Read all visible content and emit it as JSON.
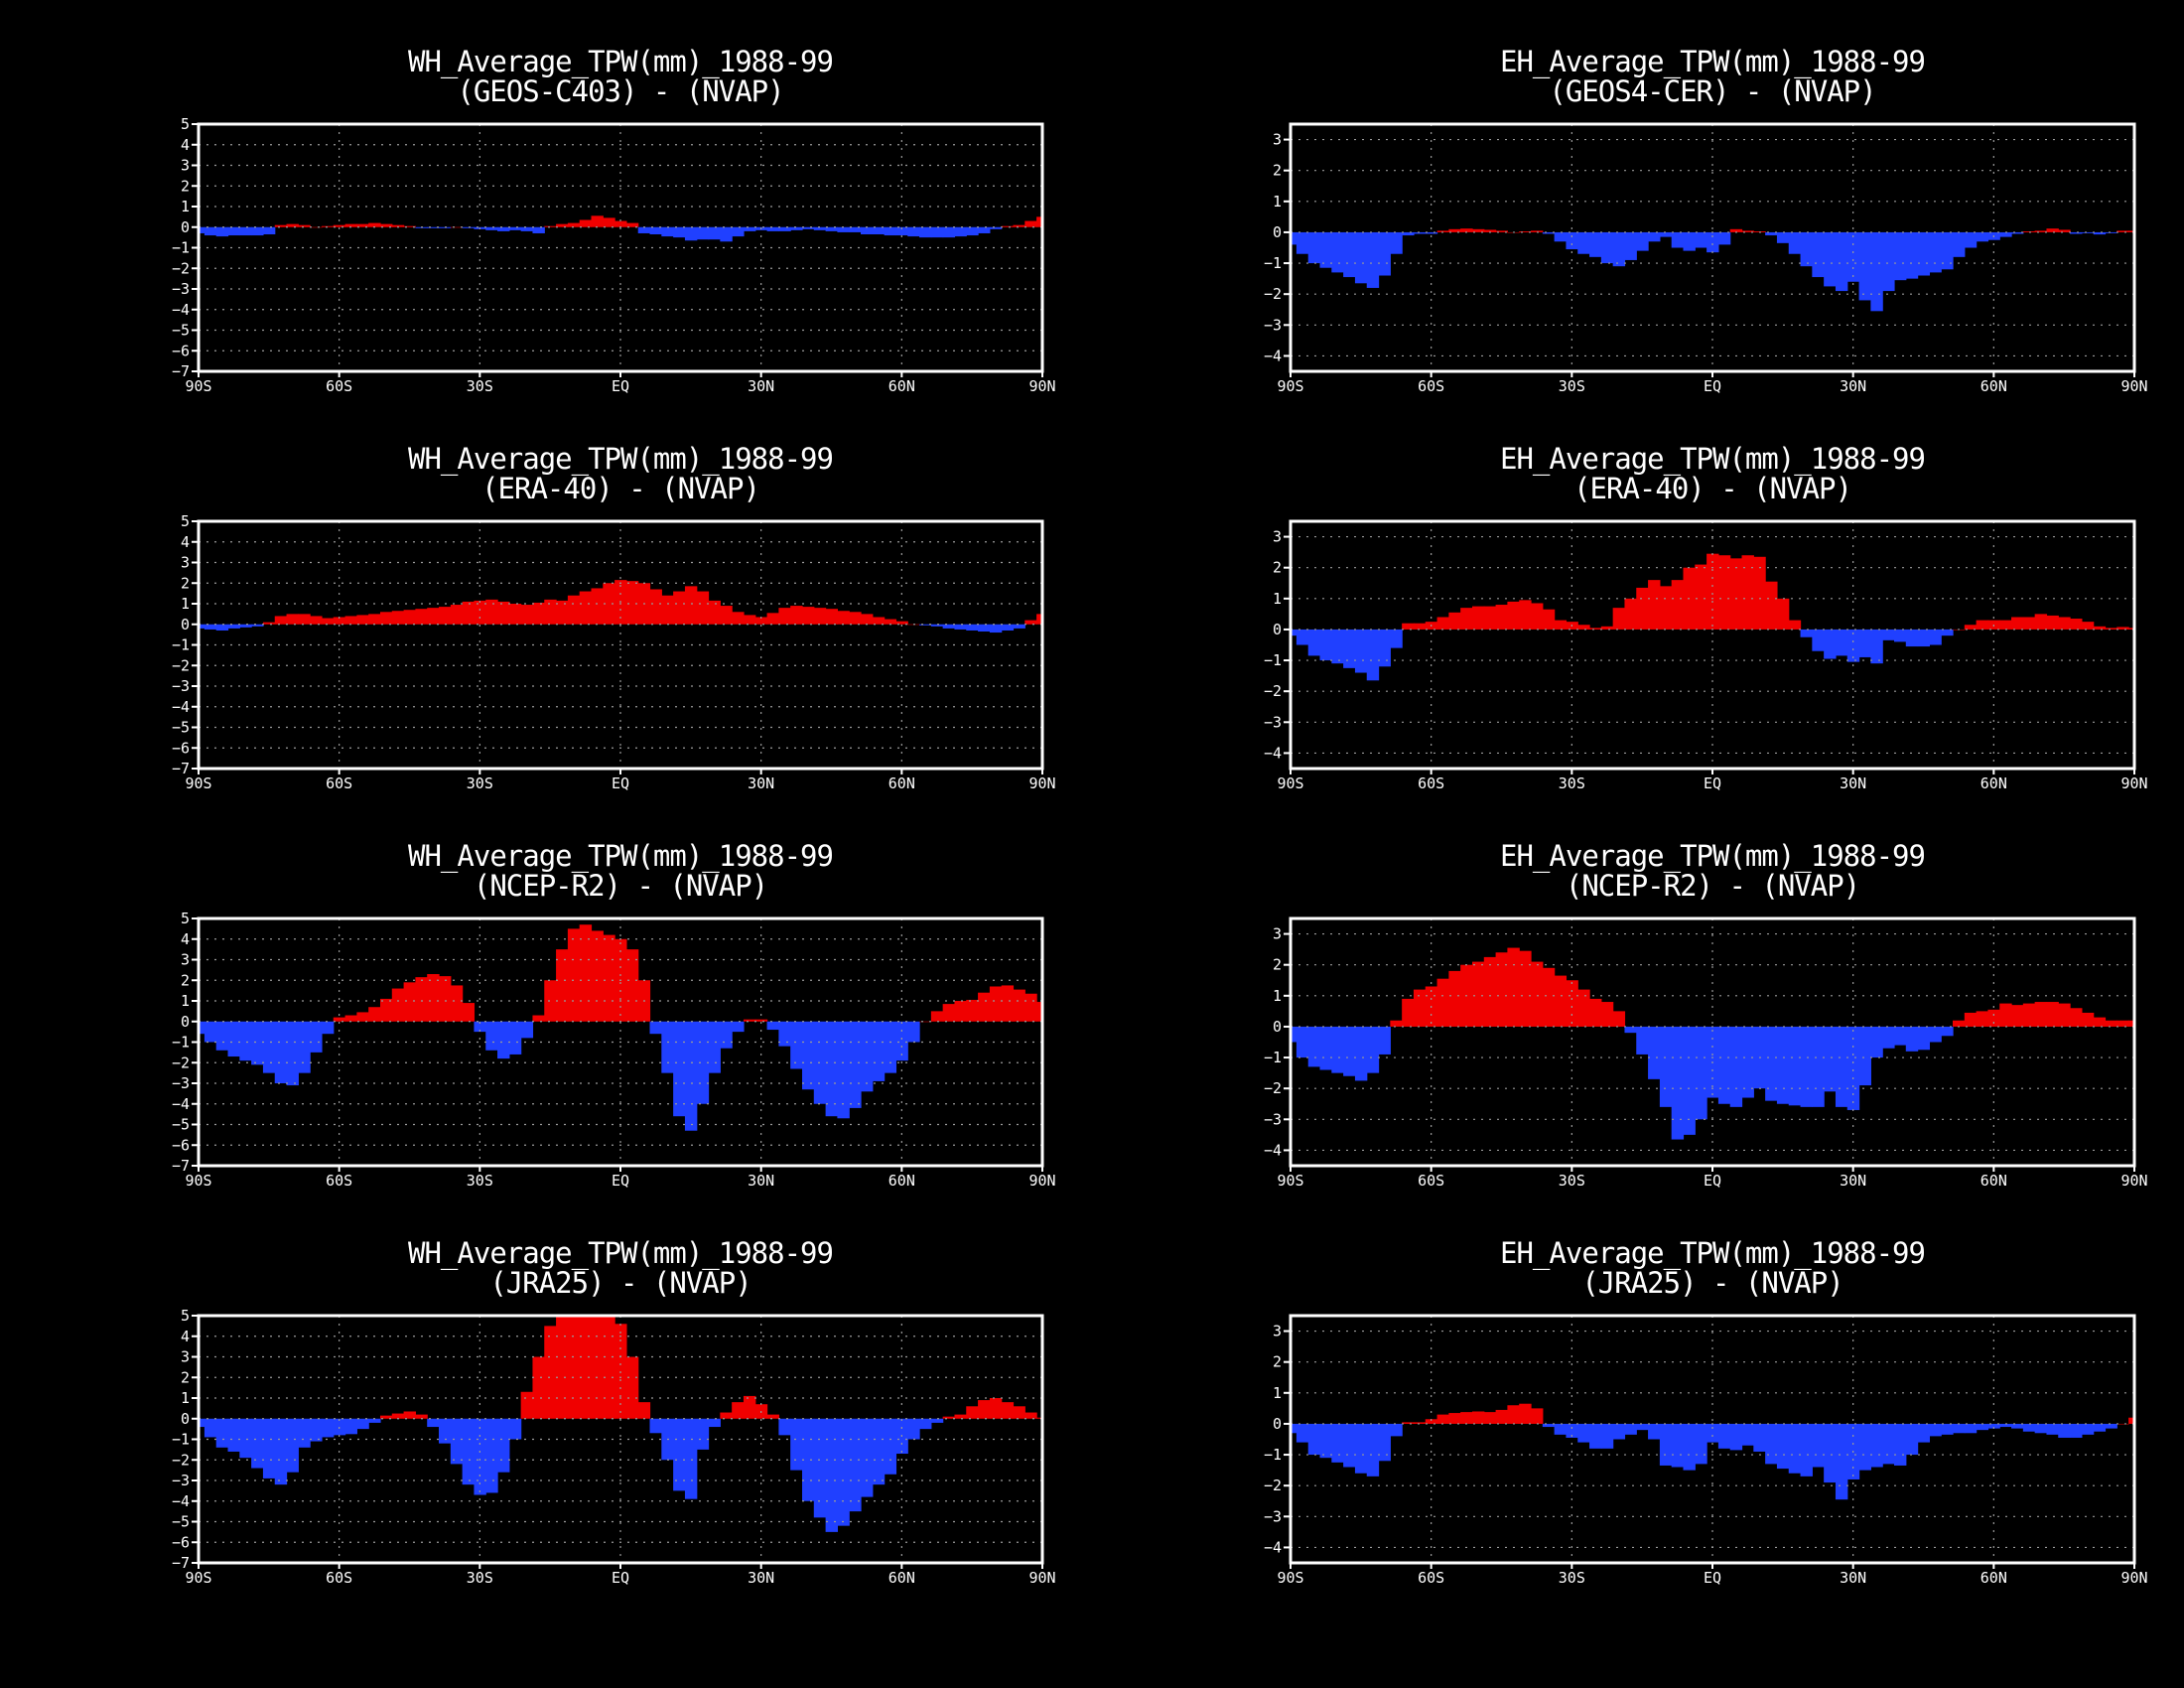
{
  "colors": {
    "positive": "#F00000",
    "negative": "#2040FF",
    "frame": "#FFFFFF",
    "grid": "#9A9A9A",
    "background": "#000000"
  },
  "chart_data": [
    {
      "type": "area",
      "title": "WH_Average_TPW(mm)_1988-99",
      "subtitle": "(GEOS-C403) - (NVAP)",
      "xlabel": "",
      "ylabel": "",
      "xlim": [
        -90,
        90
      ],
      "ylim": [
        -7,
        5
      ],
      "xticks": [
        "90S",
        "60S",
        "30S",
        "EQ",
        "30N",
        "60N",
        "90N"
      ],
      "yticks": [
        "5",
        "4",
        "3",
        "2",
        "1",
        "0",
        "-1",
        "-2",
        "-3",
        "-4",
        "-5",
        "-6",
        "-7"
      ],
      "grid": true,
      "x_step_deg": 2.5,
      "values": [
        -0.3,
        -0.4,
        -0.45,
        -0.4,
        -0.4,
        -0.4,
        -0.35,
        0.1,
        0.15,
        0.1,
        0,
        0.05,
        0.1,
        0.15,
        0.15,
        0.2,
        0.15,
        0.1,
        0.05,
        -0.05,
        -0.05,
        -0.05,
        0,
        -0.05,
        -0.1,
        -0.15,
        -0.2,
        -0.15,
        -0.2,
        -0.3,
        0.05,
        0.15,
        0.2,
        0.35,
        0.55,
        0.45,
        0.3,
        0.2,
        -0.3,
        -0.35,
        -0.45,
        -0.5,
        -0.65,
        -0.6,
        -0.6,
        -0.7,
        -0.45,
        -0.2,
        -0.15,
        -0.2,
        -0.2,
        -0.15,
        -0.1,
        -0.15,
        -0.2,
        -0.25,
        -0.25,
        -0.35,
        -0.35,
        -0.4,
        -0.4,
        -0.45,
        -0.5,
        -0.5,
        -0.5,
        -0.45,
        -0.4,
        -0.3,
        -0.1,
        0.05,
        0.1,
        0.3,
        0.5
      ]
    },
    {
      "type": "area",
      "title": "EH_Average_TPW(mm)_1988-99",
      "subtitle": "(GEOS4-CER) - (NVAP)",
      "xlabel": "",
      "ylabel": "",
      "xlim": [
        -90,
        90
      ],
      "ylim": [
        -4.5,
        3.5
      ],
      "xticks": [
        "90S",
        "60S",
        "30S",
        "EQ",
        "30N",
        "60N",
        "90N"
      ],
      "yticks": [
        "3",
        "2",
        "1",
        "0",
        "-1",
        "-2",
        "-3",
        "-4"
      ],
      "grid": true,
      "x_step_deg": 2.5,
      "values": [
        -0.4,
        -0.7,
        -1.0,
        -1.15,
        -1.3,
        -1.45,
        -1.65,
        -1.8,
        -1.4,
        -0.7,
        -0.1,
        -0.05,
        -0.05,
        0.05,
        0.1,
        0.12,
        0.1,
        0.08,
        0.05,
        0.0,
        0.03,
        0.05,
        -0.05,
        -0.3,
        -0.55,
        -0.7,
        -0.8,
        -1.0,
        -1.1,
        -0.9,
        -0.6,
        -0.3,
        -0.15,
        -0.5,
        -0.6,
        -0.5,
        -0.65,
        -0.4,
        0.1,
        0.05,
        0.03,
        -0.1,
        -0.35,
        -0.7,
        -1.1,
        -1.45,
        -1.75,
        -1.9,
        -1.6,
        -2.2,
        -2.55,
        -1.9,
        -1.55,
        -1.5,
        -1.4,
        -1.3,
        -1.2,
        -0.8,
        -0.5,
        -0.3,
        -0.25,
        -0.15,
        -0.05,
        0.03,
        0.05,
        0.12,
        0.08,
        -0.05,
        -0.03,
        -0.07,
        -0.03,
        0.05,
        0.05,
        0.15,
        0.4,
        0.55
      ]
    },
    {
      "type": "area",
      "title": "WH_Average_TPW(mm)_1988-99",
      "subtitle": "(ERA-40) - (NVAP)",
      "xlabel": "",
      "ylabel": "",
      "xlim": [
        -90,
        90
      ],
      "ylim": [
        -7,
        5
      ],
      "xticks": [
        "90S",
        "60S",
        "30S",
        "EQ",
        "30N",
        "60N",
        "90N"
      ],
      "yticks": [
        "5",
        "4",
        "3",
        "2",
        "1",
        "0",
        "-1",
        "-2",
        "-3",
        "-4",
        "-5",
        "-6",
        "-7"
      ],
      "grid": true,
      "x_step_deg": 2.5,
      "values": [
        -0.2,
        -0.25,
        -0.3,
        -0.2,
        -0.15,
        -0.1,
        0.1,
        0.4,
        0.5,
        0.5,
        0.4,
        0.3,
        0.35,
        0.4,
        0.45,
        0.5,
        0.6,
        0.65,
        0.7,
        0.75,
        0.8,
        0.85,
        0.95,
        1.1,
        1.15,
        1.2,
        1.1,
        1.0,
        0.95,
        1.05,
        1.2,
        1.15,
        1.4,
        1.6,
        1.75,
        2.0,
        2.15,
        2.1,
        2.0,
        1.7,
        1.4,
        1.6,
        1.85,
        1.6,
        1.15,
        0.9,
        0.6,
        0.45,
        0.35,
        0.55,
        0.8,
        0.9,
        0.85,
        0.8,
        0.75,
        0.65,
        0.6,
        0.5,
        0.35,
        0.25,
        0.15,
        0.0,
        -0.05,
        -0.1,
        -0.2,
        -0.25,
        -0.3,
        -0.35,
        -0.4,
        -0.3,
        -0.2,
        0.2,
        0.5
      ]
    },
    {
      "type": "area",
      "title": "EH_Average_TPW(mm)_1988-99",
      "subtitle": "(ERA-40) - (NVAP)",
      "xlabel": "",
      "ylabel": "",
      "xlim": [
        -90,
        90
      ],
      "ylim": [
        -4.5,
        3.5
      ],
      "xticks": [
        "90S",
        "60S",
        "30S",
        "EQ",
        "30N",
        "60N",
        "90N"
      ],
      "yticks": [
        "3",
        "2",
        "1",
        "0",
        "-1",
        "-2",
        "-3",
        "-4"
      ],
      "grid": true,
      "x_step_deg": 2.5,
      "values": [
        -0.2,
        -0.5,
        -0.85,
        -1.0,
        -1.1,
        -1.25,
        -1.4,
        -1.65,
        -1.2,
        -0.6,
        0.2,
        0.2,
        0.25,
        0.4,
        0.55,
        0.7,
        0.75,
        0.75,
        0.8,
        0.9,
        0.95,
        0.85,
        0.65,
        0.3,
        0.25,
        0.15,
        0.05,
        0.1,
        0.7,
        1.0,
        1.35,
        1.6,
        1.4,
        1.6,
        2.0,
        2.1,
        2.45,
        2.4,
        2.3,
        2.4,
        2.35,
        1.55,
        1.0,
        0.3,
        -0.25,
        -0.7,
        -0.95,
        -0.85,
        -1.05,
        -0.9,
        -1.1,
        -0.35,
        -0.4,
        -0.55,
        -0.55,
        -0.5,
        -0.2,
        0.0,
        0.15,
        0.3,
        0.3,
        0.3,
        0.4,
        0.4,
        0.5,
        0.45,
        0.4,
        0.35,
        0.25,
        0.1,
        0.05,
        0.08,
        0.05,
        0.35,
        0.55
      ]
    },
    {
      "type": "area",
      "title": "WH_Average_TPW(mm)_1988-99",
      "subtitle": "(NCEP-R2) - (NVAP)",
      "xlabel": "",
      "ylabel": "",
      "xlim": [
        -90,
        90
      ],
      "ylim": [
        -7,
        5
      ],
      "xticks": [
        "90S",
        "60S",
        "30S",
        "EQ",
        "30N",
        "60N",
        "90N"
      ],
      "yticks": [
        "5",
        "4",
        "3",
        "2",
        "1",
        "0",
        "-1",
        "-2",
        "-3",
        "-4",
        "-5",
        "-6",
        "-7"
      ],
      "grid": true,
      "x_step_deg": 2.5,
      "values": [
        -0.6,
        -1.0,
        -1.4,
        -1.7,
        -1.9,
        -2.1,
        -2.5,
        -3.0,
        -3.1,
        -2.5,
        -1.5,
        -0.6,
        0.2,
        0.3,
        0.45,
        0.7,
        1.1,
        1.6,
        1.9,
        2.15,
        2.3,
        2.2,
        1.75,
        0.9,
        -0.5,
        -1.4,
        -1.8,
        -1.6,
        -0.8,
        0.3,
        2.0,
        3.5,
        4.5,
        4.7,
        4.4,
        4.2,
        4.0,
        3.5,
        2.0,
        -0.6,
        -2.5,
        -4.6,
        -5.3,
        -4.0,
        -2.5,
        -1.3,
        -0.5,
        0.1,
        0.1,
        -0.4,
        -1.2,
        -2.3,
        -3.3,
        -4.0,
        -4.6,
        -4.7,
        -4.2,
        -3.4,
        -2.9,
        -2.5,
        -1.9,
        -1.0,
        0.0,
        0.5,
        0.85,
        1.0,
        1.05,
        1.4,
        1.7,
        1.75,
        1.55,
        1.35,
        0.95,
        0.5,
        0.6,
        0.65
      ]
    },
    {
      "type": "area",
      "title": "EH_Average_TPW(mm)_1988-99",
      "subtitle": "(NCEP-R2) - (NVAP)",
      "xlabel": "",
      "ylabel": "",
      "xlim": [
        -90,
        90
      ],
      "ylim": [
        -4.5,
        3.5
      ],
      "xticks": [
        "90S",
        "60S",
        "30S",
        "EQ",
        "30N",
        "60N",
        "90N"
      ],
      "yticks": [
        "3",
        "2",
        "1",
        "0",
        "-1",
        "-2",
        "-3",
        "-4"
      ],
      "grid": true,
      "x_step_deg": 2.5,
      "values": [
        -0.5,
        -1.0,
        -1.3,
        -1.4,
        -1.5,
        -1.6,
        -1.75,
        -1.5,
        -0.9,
        0.2,
        0.9,
        1.2,
        1.3,
        1.55,
        1.8,
        2.0,
        2.1,
        2.25,
        2.4,
        2.55,
        2.45,
        2.1,
        1.9,
        1.65,
        1.5,
        1.2,
        0.9,
        0.8,
        0.5,
        -0.2,
        -0.9,
        -1.7,
        -2.6,
        -3.65,
        -3.5,
        -3.0,
        -2.3,
        -2.5,
        -2.6,
        -2.3,
        -2.0,
        -2.4,
        -2.5,
        -2.55,
        -2.6,
        -2.6,
        -2.1,
        -2.6,
        -2.7,
        -1.9,
        -1.0,
        -0.7,
        -0.6,
        -0.8,
        -0.75,
        -0.5,
        -0.3,
        0.2,
        0.45,
        0.5,
        0.55,
        0.75,
        0.7,
        0.75,
        0.8,
        0.8,
        0.75,
        0.6,
        0.45,
        0.3,
        0.2,
        0.2,
        0.2,
        0.25,
        0.55,
        0.65
      ]
    },
    {
      "type": "area",
      "title": "WH_Average_TPW(mm)_1988-99",
      "subtitle": "(JRA25) - (NVAP)",
      "xlabel": "",
      "ylabel": "",
      "xlim": [
        -90,
        90
      ],
      "ylim": [
        -7,
        5
      ],
      "xticks": [
        "90S",
        "60S",
        "30S",
        "EQ",
        "30N",
        "60N",
        "90N"
      ],
      "yticks": [
        "5",
        "4",
        "3",
        "2",
        "1",
        "0",
        "-1",
        "-2",
        "-3",
        "-4",
        "-5",
        "-6",
        "-7"
      ],
      "grid": true,
      "x_step_deg": 2.5,
      "values": [
        -0.4,
        -0.9,
        -1.4,
        -1.6,
        -1.9,
        -2.4,
        -2.9,
        -3.2,
        -2.6,
        -1.4,
        -1.1,
        -0.9,
        -0.8,
        -0.75,
        -0.5,
        -0.2,
        0.15,
        0.25,
        0.35,
        0.2,
        -0.4,
        -1.2,
        -2.2,
        -3.2,
        -3.7,
        -3.6,
        -2.6,
        -1.0,
        1.3,
        3.0,
        4.5,
        5.0,
        5.0,
        5.0,
        5.0,
        5.0,
        4.6,
        3.0,
        0.8,
        -0.7,
        -2.0,
        -3.5,
        -3.9,
        -1.5,
        -0.4,
        0.3,
        0.8,
        1.1,
        0.7,
        0.2,
        -0.8,
        -2.5,
        -4.0,
        -4.8,
        -5.5,
        -5.2,
        -4.5,
        -3.8,
        -3.2,
        -2.7,
        -1.7,
        -1.0,
        -0.5,
        -0.2,
        0.1,
        0.2,
        0.6,
        0.9,
        1.0,
        0.8,
        0.6,
        0.3,
        0.05,
        0.2,
        0.35
      ]
    },
    {
      "type": "area",
      "title": "EH_Average_TPW(mm)_1988-99",
      "subtitle": "(JRA25) - (NVAP)",
      "xlabel": "",
      "ylabel": "",
      "xlim": [
        -90,
        90
      ],
      "ylim": [
        -4.5,
        3.5
      ],
      "xticks": [
        "90S",
        "60S",
        "30S",
        "EQ",
        "30N",
        "60N",
        "90N"
      ],
      "yticks": [
        "3",
        "2",
        "1",
        "0",
        "-1",
        "-2",
        "-3",
        "-4"
      ],
      "grid": true,
      "x_step_deg": 2.5,
      "values": [
        -0.3,
        -0.6,
        -1.0,
        -1.1,
        -1.25,
        -1.4,
        -1.6,
        -1.7,
        -1.2,
        -0.4,
        0.05,
        0.05,
        0.15,
        0.3,
        0.35,
        0.38,
        0.4,
        0.38,
        0.45,
        0.6,
        0.65,
        0.5,
        -0.1,
        -0.35,
        -0.45,
        -0.6,
        -0.8,
        -0.8,
        -0.5,
        -0.35,
        -0.2,
        -0.5,
        -1.35,
        -1.4,
        -1.5,
        -1.3,
        -0.6,
        -0.8,
        -0.85,
        -0.7,
        -0.9,
        -1.3,
        -1.45,
        -1.6,
        -1.7,
        -1.4,
        -1.9,
        -2.45,
        -1.8,
        -1.5,
        -1.4,
        -1.3,
        -1.35,
        -1.0,
        -0.6,
        -0.4,
        -0.35,
        -0.3,
        -0.3,
        -0.2,
        -0.15,
        -0.1,
        -0.15,
        -0.25,
        -0.3,
        -0.35,
        -0.45,
        -0.45,
        -0.35,
        -0.25,
        -0.15,
        0.0,
        0.2,
        0.38
      ]
    }
  ]
}
